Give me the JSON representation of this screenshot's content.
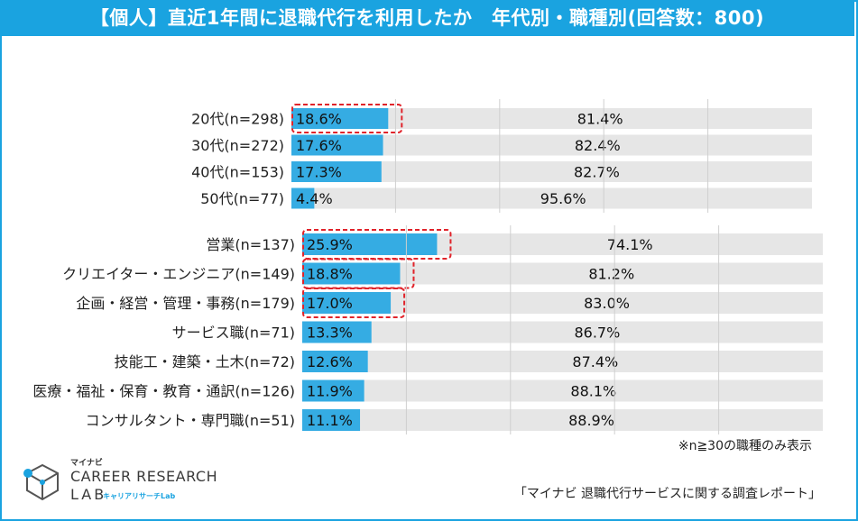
{
  "title": "【個人】直近1年間に退職代行を利用したか　年代別・職種別(回答数：800)",
  "note": "※n≧30の職種のみ表示",
  "source": "「マイナビ 退職代行サービスに関する調査レポート」",
  "logo": {
    "small": "マイナビ",
    "line1": "CAREER RESEARCH",
    "line2": "LAB",
    "kana": "キャリアリサーチLab"
  },
  "colors": {
    "accent": "#1aa3e0",
    "bar_used": "#35ace3",
    "bar_rest": "#e6e6e6",
    "highlight": "#e0232a"
  },
  "chart_data": [
    {
      "type": "bar",
      "stacked": true,
      "orientation": "horizontal",
      "categories": [
        "20代(n=298)",
        "30代(n=272)",
        "40代(n=153)",
        "50代(n=77)"
      ],
      "series": [
        {
          "values": [
            18.6,
            17.6,
            17.3,
            4.4
          ]
        },
        {
          "values": [
            81.4,
            82.4,
            82.7,
            95.6
          ]
        }
      ],
      "data_labels": [
        [
          "18.6%",
          "17.6%",
          "17.3%",
          "4.4%"
        ],
        [
          "81.4%",
          "82.4%",
          "82.7%",
          "95.6%"
        ]
      ],
      "highlighted": [
        0
      ],
      "xlim": [
        0,
        100
      ],
      "grid": true
    },
    {
      "type": "bar",
      "stacked": true,
      "orientation": "horizontal",
      "categories": [
        "営業(n=137)",
        "クリエイター・エンジニア(n=149)",
        "企画・経営・管理・事務(n=179)",
        "サービス職(n=71)",
        "技能工・建築・土木(n=72)",
        "医療・福祉・保育・教育・通訳(n=126)",
        "コンサルタント・専門職(n=51)"
      ],
      "series": [
        {
          "values": [
            25.9,
            18.8,
            17.0,
            13.3,
            12.6,
            11.9,
            11.1
          ]
        },
        {
          "values": [
            74.1,
            81.2,
            83.0,
            86.7,
            87.4,
            88.1,
            88.9
          ]
        }
      ],
      "data_labels": [
        [
          "25.9%",
          "18.8%",
          "17.0%",
          "13.3%",
          "12.6%",
          "11.9%",
          "11.1%"
        ],
        [
          "74.1%",
          "81.2%",
          "83.0%",
          "86.7%",
          "87.4%",
          "88.1%",
          "88.9%"
        ]
      ],
      "highlighted": [
        0,
        1,
        2
      ],
      "xlim": [
        0,
        100
      ],
      "grid": true
    }
  ]
}
